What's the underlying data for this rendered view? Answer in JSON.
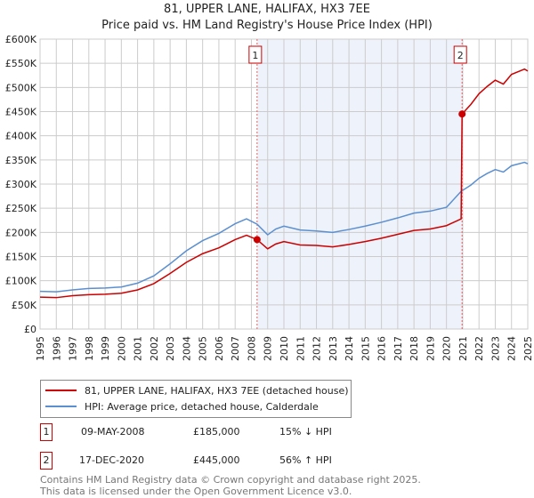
{
  "chart_data": {
    "type": "line",
    "title": "81, UPPER LANE, HALIFAX, HX3 7EE",
    "subtitle": "Price paid vs. HM Land Registry's House Price Index (HPI)",
    "xlim": [
      1995,
      2025
    ],
    "ylim": [
      0,
      600000
    ],
    "y_ticks": [
      0,
      50000,
      100000,
      150000,
      200000,
      250000,
      300000,
      350000,
      400000,
      450000,
      500000,
      550000,
      600000
    ],
    "y_tick_labels": [
      "£0",
      "£50K",
      "£100K",
      "£150K",
      "£200K",
      "£250K",
      "£300K",
      "£350K",
      "£400K",
      "£450K",
      "£500K",
      "£550K",
      "£600K"
    ],
    "x_tick_labels": [
      "1995",
      "1996",
      "1997",
      "1998",
      "1999",
      "2000",
      "2001",
      "2002",
      "2003",
      "2004",
      "2005",
      "2006",
      "2007",
      "2008",
      "2009",
      "2010",
      "2011",
      "2012",
      "2013",
      "2014",
      "2015",
      "2016",
      "2017",
      "2018",
      "2019",
      "2020",
      "2021",
      "2022",
      "2023",
      "2024",
      "2025"
    ],
    "grid": true,
    "series": [
      {
        "name": "81, UPPER LANE, HALIFAX, HX3 7EE (detached house)",
        "color": "#cc0000",
        "x": [
          1995,
          1996,
          1997,
          1998,
          1999,
          2000,
          2001,
          2002,
          2003,
          2004,
          2005,
          2006,
          2007,
          2007.7,
          2008.35,
          2009,
          2009.5,
          2010,
          2011,
          2012,
          2013,
          2014,
          2015,
          2016,
          2017,
          2018,
          2019,
          2020,
          2020.9,
          2020.96,
          2021.5,
          2022,
          2022.5,
          2023,
          2023.5,
          2024,
          2024.8,
          2025
        ],
        "y": [
          66000,
          65000,
          69000,
          71000,
          72000,
          74000,
          81000,
          94000,
          115000,
          138000,
          156000,
          168000,
          185000,
          194000,
          185000,
          166000,
          176000,
          181000,
          174000,
          173000,
          170000,
          175000,
          181000,
          188000,
          196000,
          204000,
          207000,
          214000,
          228000,
          445000,
          465000,
          487000,
          502000,
          515000,
          507000,
          527000,
          538000,
          534000
        ]
      },
      {
        "name": "HPI: Average price, detached house, Calderdale",
        "color": "#5b8fd0",
        "x": [
          1995,
          1996,
          1997,
          1998,
          1999,
          2000,
          2001,
          2002,
          2003,
          2004,
          2005,
          2006,
          2007,
          2007.7,
          2008.35,
          2009,
          2009.5,
          2010,
          2011,
          2012,
          2013,
          2014,
          2015,
          2016,
          2017,
          2018,
          2019,
          2020,
          2020.9,
          2021.5,
          2022,
          2022.5,
          2023,
          2023.5,
          2024,
          2024.8,
          2025
        ],
        "y": [
          78000,
          77000,
          81000,
          84000,
          85000,
          87000,
          95000,
          110000,
          135000,
          162000,
          183000,
          198000,
          218000,
          228000,
          217000,
          195000,
          207000,
          213000,
          205000,
          203000,
          200000,
          206000,
          213000,
          221000,
          230000,
          240000,
          244000,
          252000,
          285000,
          298000,
          312000,
          322000,
          330000,
          325000,
          338000,
          345000,
          342000
        ]
      }
    ],
    "sales": [
      {
        "label": "1",
        "year": 2008.35,
        "price": 185000,
        "date": "09-MAY-2008",
        "price_text": "£185,000",
        "hpi_text": "15% ↓ HPI"
      },
      {
        "label": "2",
        "year": 2020.96,
        "price": 445000,
        "date": "17-DEC-2020",
        "price_text": "£445,000",
        "hpi_text": "56% ↑ HPI"
      }
    ],
    "shaded_range": [
      2008.35,
      2020.96
    ],
    "legend_placement": "below"
  },
  "footer": {
    "line1": "Contains HM Land Registry data © Crown copyright and database right 2025.",
    "line2": "This data is licensed under the Open Government Licence v3.0."
  }
}
